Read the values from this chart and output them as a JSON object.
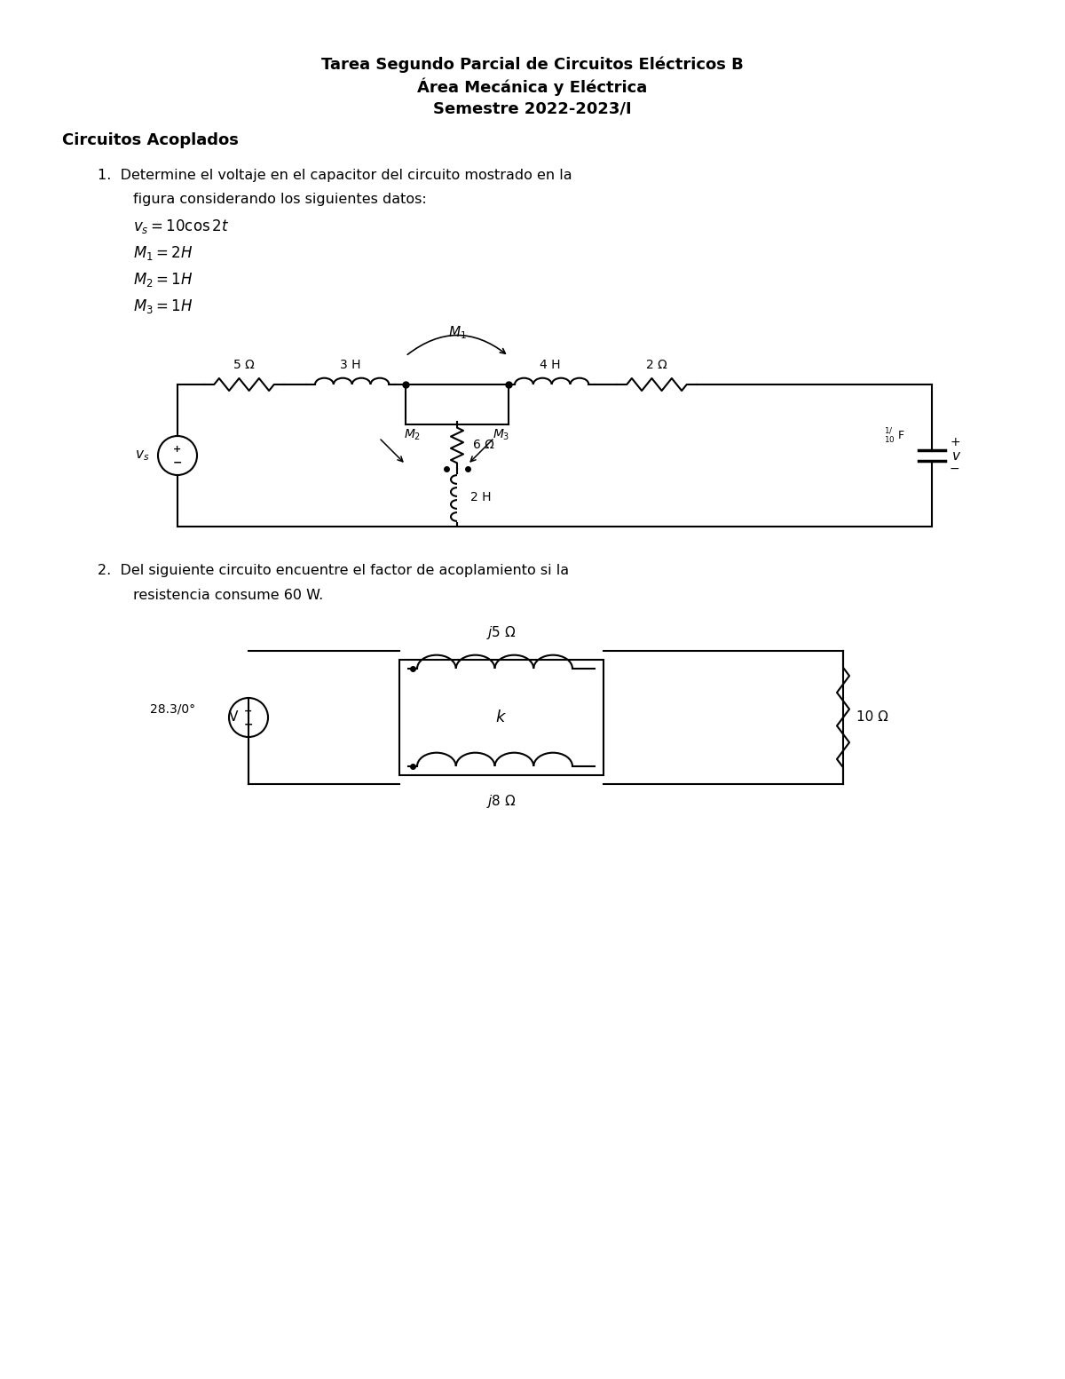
{
  "title_line1": "Tarea Segundo Parcial de Circuitos Eléctricos B",
  "title_line2": "Área Mecánica y Eléctrica",
  "title_line3": "Semestre 2022-2023/I",
  "section": "Circuitos Acoplados",
  "q1_text1": "1.  Determine el voltaje en el capacitor del circuito mostrado en la",
  "q1_text2": "figura considerando los siguientes datos:",
  "q1_eq1": "$v_s = 10 \\cos 2t$",
  "q1_eq2": "$M_1 = 2H$",
  "q1_eq3": "$M_2 = 1H$",
  "q1_eq4": "$M_3 = 1H$",
  "q2_text1": "2.  Del siguiente circuito encuentre el factor de acoplamiento si la",
  "q2_text2": "resistencia consume 60 W.",
  "bg_color": "#ffffff",
  "text_color": "#000000"
}
